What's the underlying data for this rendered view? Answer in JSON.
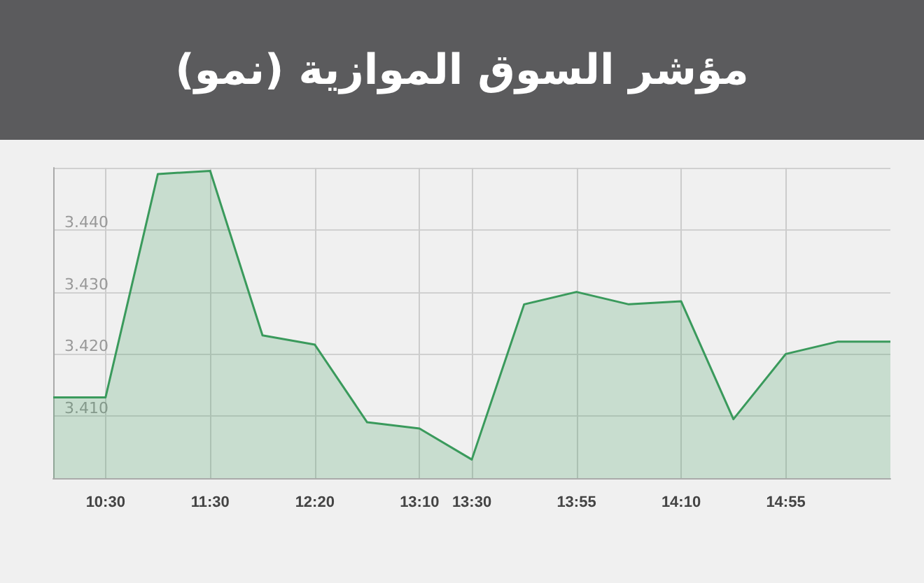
{
  "chart_data": {
    "type": "area",
    "title": "مؤشر السوق الموازية (نمو)",
    "categories": [
      null,
      "10:30",
      null,
      "11:30",
      null,
      "12:20",
      null,
      "13:10",
      "13:30",
      null,
      "13:55",
      null,
      "14:10",
      null,
      "14:55",
      null,
      null
    ],
    "series": [
      {
        "color": "#3a9a5c",
        "values": [
          3.413,
          3.413,
          3.449,
          3.4495,
          3.423,
          3.4215,
          3.409,
          3.408,
          3.403,
          3.428,
          3.43,
          3.428,
          3.4285,
          3.4095,
          3.42,
          3.422,
          3.422
        ]
      }
    ],
    "ylim": [
      3.4,
      3.45
    ],
    "yticks": [
      {
        "value": 3.4,
        "label": null
      },
      {
        "value": 3.41,
        "label": "3.410"
      },
      {
        "value": 3.42,
        "label": "3.420"
      },
      {
        "value": 3.43,
        "label": "3.430"
      },
      {
        "value": 3.44,
        "label": "3.440"
      },
      {
        "value": 3.45,
        "label": null
      }
    ],
    "grid": true,
    "marker": "none"
  }
}
